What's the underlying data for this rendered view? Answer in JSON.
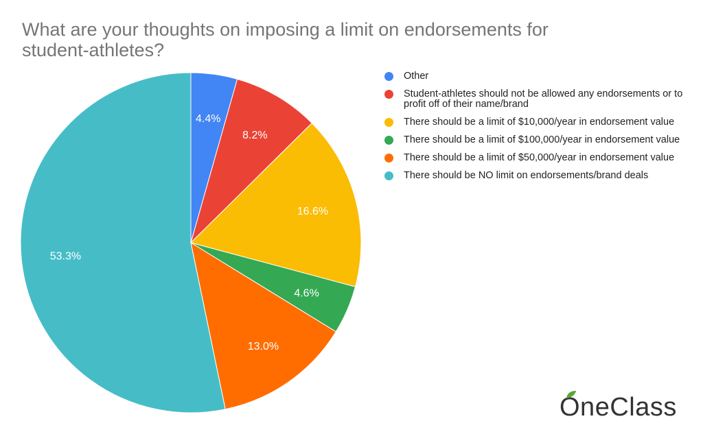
{
  "chart_data": {
    "type": "pie",
    "title": "What are your thoughts on imposing a limit on endorsements for student-athletes?",
    "slices": [
      {
        "label": "Other",
        "value": 4.4,
        "value_label": "4.4%",
        "color": "#4285f4"
      },
      {
        "label": "Student-athletes should not be allowed any endorsements or to profit off of their name/brand",
        "value": 8.2,
        "value_label": "8.2%",
        "color": "#ea4335"
      },
      {
        "label": "There should be a limit of $10,000/year in endorsement value",
        "value": 16.6,
        "value_label": "16.6%",
        "color": "#fbbc04"
      },
      {
        "label": "There should be a limit of $100,000/year in endorsement value",
        "value": 4.6,
        "value_label": "4.6%",
        "color": "#34a853"
      },
      {
        "label": "There should be a limit of $50,000/year in endorsement value",
        "value": 13.0,
        "value_label": "13.0%",
        "color": "#ff6d01"
      },
      {
        "label": "There should be NO limit on endorsements/brand deals",
        "value": 53.3,
        "value_label": "53.3%",
        "color": "#46bdc6"
      }
    ],
    "start_angle": "12 o'clock",
    "direction": "clockwise",
    "legend_position": "right"
  },
  "watermark": {
    "text": "OneClass",
    "leaf_color": "#5aa53a"
  }
}
